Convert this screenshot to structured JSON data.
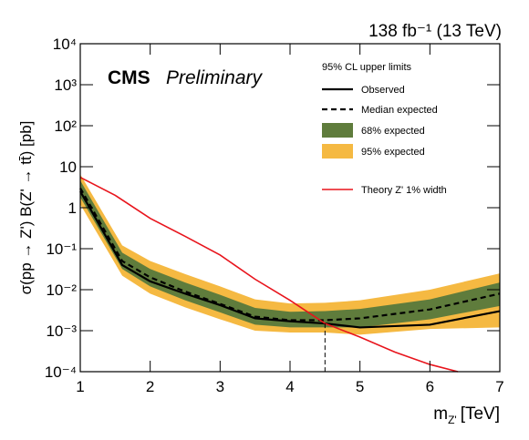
{
  "chart_data": {
    "type": "limit",
    "top_label": "138 fb⁻¹ (13 TeV)",
    "brand": "CMS",
    "brand_status": "Preliminary",
    "y_label": "σ(pp → Z') B(Z' → tt̄) [pb]",
    "x_label": {
      "main": "m",
      "sub": "Z'",
      "unit": "[TeV]"
    },
    "legend_title": "95% CL upper limits",
    "log_y": true,
    "xlim": [
      1,
      7
    ],
    "ylim": [
      0.0001,
      10000
    ],
    "xticks": [
      1,
      2,
      3,
      4,
      5,
      6,
      7
    ],
    "yticks": [
      {
        "value": 10000,
        "label": "10⁴"
      },
      {
        "value": 1000,
        "label": "10³"
      },
      {
        "value": 100,
        "label": "10²"
      },
      10,
      1,
      {
        "value": 0.1,
        "label": "10⁻¹"
      },
      {
        "value": 0.01,
        "label": "10⁻²"
      },
      {
        "value": 0.001,
        "label": "10⁻³"
      },
      {
        "value": 0.0001,
        "label": "10⁻⁴"
      }
    ],
    "x": [
      1,
      1.6,
      2,
      2.5,
      3,
      3.5,
      4,
      4.5,
      5,
      6,
      7
    ],
    "bands": [
      {
        "name": "95% expected",
        "color": "#f5b942",
        "low": [
          1.2,
          0.022,
          0.008,
          0.0037,
          0.0019,
          0.001,
          0.0009,
          0.0009,
          0.0008,
          0.0011,
          0.0012
        ],
        "high": [
          6.5,
          0.12,
          0.05,
          0.024,
          0.012,
          0.0058,
          0.0046,
          0.0048,
          0.0055,
          0.01,
          0.025
        ]
      },
      {
        "name": "68% expected",
        "color": "#5f7c3c",
        "low": [
          1.8,
          0.032,
          0.012,
          0.0055,
          0.0028,
          0.0014,
          0.0012,
          0.0012,
          0.0012,
          0.0019,
          0.004
        ],
        "high": [
          4.6,
          0.08,
          0.032,
          0.015,
          0.0075,
          0.0036,
          0.0029,
          0.003,
          0.0034,
          0.0058,
          0.015
        ]
      }
    ],
    "series": [
      {
        "name": "Observed",
        "color": "#000000",
        "dash": false,
        "values": [
          2.5,
          0.04,
          0.016,
          0.008,
          0.0042,
          0.002,
          0.0017,
          0.0015,
          0.0012,
          0.0014,
          0.003
        ]
      },
      {
        "name": "Median expected",
        "color": "#000000",
        "dash": true,
        "values": [
          3,
          0.05,
          0.02,
          0.009,
          0.0045,
          0.0022,
          0.0018,
          0.0018,
          0.002,
          0.0033,
          0.008
        ]
      }
    ],
    "theory": {
      "name": "Theory Z' 1% width",
      "color": "#e8141c",
      "x": [
        1,
        1.5,
        2,
        2.5,
        3,
        3.5,
        4,
        4.5,
        5,
        5.5,
        6,
        6.4
      ],
      "values": [
        5.5,
        2,
        0.55,
        0.2,
        0.07,
        0.018,
        0.0055,
        0.0015,
        0.0007,
        0.0003,
        0.00015,
        0.0001
      ]
    },
    "limit_mass": 4.5,
    "limit_value": 0.0015
  }
}
